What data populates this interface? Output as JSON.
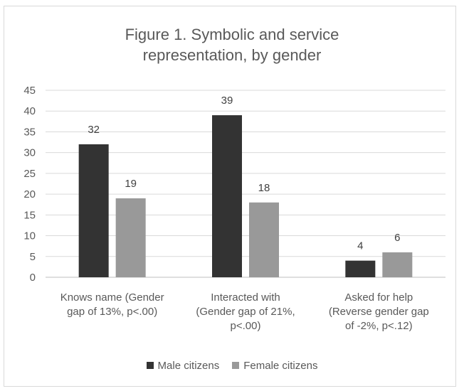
{
  "chart_data": {
    "type": "bar",
    "title_lines": [
      "Figure 1. Symbolic and service",
      "representation, by gender"
    ],
    "categories": [
      [
        "Knows name (Gender",
        "gap of 13%, p<.00)"
      ],
      [
        "Interacted with",
        "(Gender gap of 21%,",
        "p<.00)"
      ],
      [
        "Asked for help",
        "(Reverse gender gap",
        "of -2%, p<.12)"
      ]
    ],
    "series": [
      {
        "name": "Male citizens",
        "values": [
          32,
          39,
          4
        ],
        "color": "#333333"
      },
      {
        "name": "Female citizens",
        "values": [
          19,
          18,
          6
        ],
        "color": "#999999"
      }
    ],
    "ylim": [
      0,
      45
    ],
    "yticks": [
      0,
      5,
      10,
      15,
      20,
      25,
      30,
      35,
      40,
      45
    ],
    "grid": true,
    "legend_position": "bottom"
  }
}
